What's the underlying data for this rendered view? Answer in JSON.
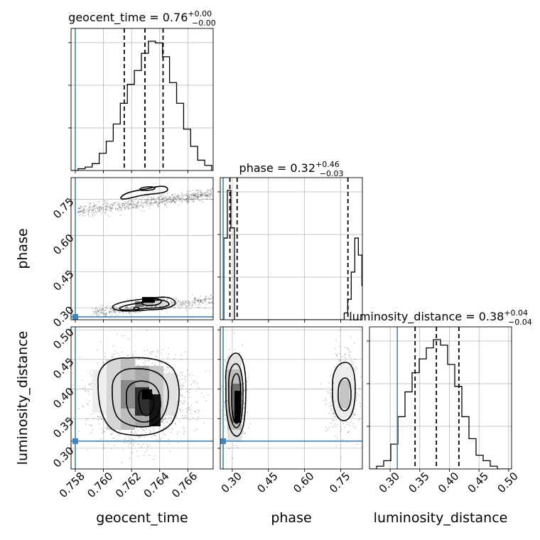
{
  "chart_data": {
    "type": "corner",
    "parameters": [
      "geocent_time",
      "phase",
      "luminosity_distance"
    ],
    "axis_labels": [
      "geocent_time",
      "phase",
      "luminosity_distance"
    ],
    "ranges": {
      "geocent_time": [
        0.7577,
        0.7678
      ],
      "phase": [
        0.25,
        0.84
      ],
      "luminosity_distance": [
        0.265,
        0.505
      ]
    },
    "ticks": {
      "geocent_time": [
        "0.758",
        "0.760",
        "0.762",
        "0.764",
        "0.766"
      ],
      "phase": [
        "0.30",
        "0.45",
        "0.60",
        "0.75"
      ],
      "luminosity_distance": [
        "0.30",
        "0.35",
        "0.40",
        "0.45",
        "0.50"
      ]
    },
    "tick_values": {
      "geocent_time": [
        0.758,
        0.76,
        0.762,
        0.764,
        0.766
      ],
      "phase": [
        0.3,
        0.45,
        0.6,
        0.75
      ],
      "luminosity_distance": [
        0.3,
        0.35,
        0.4,
        0.45,
        0.5
      ]
    },
    "titles": [
      {
        "name": "geocent_time",
        "median": "0.76",
        "plus": "+0.00",
        "minus": "−0.00"
      },
      {
        "name": "phase",
        "median": "0.32",
        "plus": "+0.46",
        "minus": "−0.03"
      },
      {
        "name": "luminosity_distance",
        "median": "0.38",
        "plus": "+0.04",
        "minus": "−0.04"
      }
    ],
    "truths": {
      "geocent_time": 0.758,
      "phase": 0.262,
      "luminosity_distance": 0.312
    },
    "quantiles": {
      "geocent_time": [
        0.76148,
        0.76295,
        0.76424
      ],
      "phase": [
        0.29,
        0.32,
        0.78
      ],
      "luminosity_distance": [
        0.342,
        0.378,
        0.416
      ]
    },
    "histograms": {
      "geocent_time": {
        "edges_start": 0.7577,
        "bin_width": 0.0005,
        "counts": [
          0,
          1,
          2,
          4,
          10,
          17,
          27,
          39,
          50,
          58,
          68,
          75,
          74,
          66,
          51,
          39,
          24,
          14,
          6,
          3,
          0
        ]
      },
      "phase": {
        "edges_start": 0.25,
        "bin_width": 0.0147,
        "counts": [
          0,
          24,
          38,
          27,
          0,
          0,
          0,
          0,
          0,
          0,
          0,
          0,
          0,
          0,
          0,
          0,
          0,
          0,
          0,
          0,
          0,
          0,
          0,
          0,
          0,
          0,
          0,
          0,
          0,
          0,
          0,
          0,
          0,
          0,
          0,
          2,
          6,
          14,
          24,
          19,
          10,
          0
        ]
      },
      "luminosity_distance": {
        "edges_start": 0.265,
        "bin_width": 0.012,
        "counts": [
          0,
          1,
          3,
          9,
          19,
          28,
          35,
          40,
          44,
          47,
          45,
          38,
          30,
          19,
          11,
          5,
          3,
          1,
          0,
          0
        ]
      }
    },
    "density_2d": {
      "phase_vs_geocent_time": [
        {
          "x": 0.761,
          "y": 0.305,
          "level": 1
        },
        {
          "x": 0.7625,
          "y": 0.32,
          "level": 2
        },
        {
          "x": 0.7632,
          "y": 0.322,
          "level": 3
        },
        {
          "x": 0.762,
          "y": 0.79,
          "level": 1
        },
        {
          "x": 0.7635,
          "y": 0.8,
          "level": 2
        }
      ],
      "luminosity_distance_vs_geocent_time": [
        {
          "x": 0.763,
          "y": 0.382,
          "level": 3
        }
      ],
      "luminosity_distance_vs_phase": [
        {
          "x": 0.31,
          "y": 0.37,
          "level": 3
        },
        {
          "x": 0.77,
          "y": 0.385,
          "level": 2
        }
      ]
    }
  }
}
